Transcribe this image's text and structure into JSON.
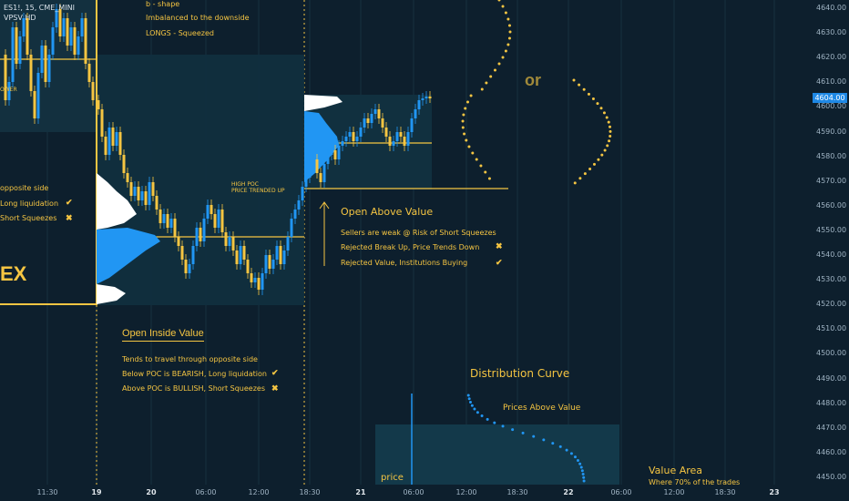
{
  "symbol": "ES1!, 15, CME_MINI",
  "indicator": "VPSV HD",
  "y_axis": {
    "ticks": [
      "4640.00",
      "4630.00",
      "4620.00",
      "4610.00",
      "4600.00",
      "4590.00",
      "4580.00",
      "4570.00",
      "4560.00",
      "4550.00",
      "4540.00",
      "4530.00",
      "4520.00",
      "4510.00",
      "4500.00",
      "4490.00",
      "4480.00",
      "4470.00",
      "4460.00",
      "4450.00"
    ],
    "current_price": "4604.00"
  },
  "x_axis": {
    "ticks": [
      {
        "label": "11:30",
        "bold": false
      },
      {
        "label": "19",
        "bold": true
      },
      {
        "label": "20",
        "bold": true
      },
      {
        "label": "06:00",
        "bold": false
      },
      {
        "label": "12:00",
        "bold": false
      },
      {
        "label": "18:30",
        "bold": false
      },
      {
        "label": "21",
        "bold": true
      },
      {
        "label": "06:00",
        "bold": false
      },
      {
        "label": "12:00",
        "bold": false
      },
      {
        "label": "18:30",
        "bold": false
      },
      {
        "label": "22",
        "bold": true
      },
      {
        "label": "06:00",
        "bold": false
      },
      {
        "label": "12:00",
        "bold": false
      },
      {
        "label": "18:30",
        "bold": false
      },
      {
        "label": "23",
        "bold": true
      }
    ]
  },
  "annotations": {
    "b_shape": "b - shape",
    "imbalanced": "Imbalanced to the downside",
    "longs_squeezed": "LONGS - Squeezed",
    "ower": "OWER",
    "opposite_side": "opposite side",
    "long_liquidation": "Long liquidation",
    "short_squeezes": "Short Squeezes",
    "ex": "EX",
    "check": "✔",
    "cross": "✖",
    "high_poc": "HIGH POC",
    "price_trended_up": "PRICE TRENDED UP",
    "or": "or",
    "open_above_value": {
      "title": "Open Above Value",
      "line1": "Sellers are weak @ Risk of Short Squeezes",
      "line2": "Rejected Break Up, Price Trends Down",
      "line3": "Rejected Value, Institutions Buying"
    },
    "open_inside_value": {
      "title": "Open Inside Value",
      "line1": "Tends to travel through opposite side",
      "line2": "Below POC is BEARISH, Long liquidation",
      "line3": "Above POC is BULLISH, Short Squeezes"
    },
    "distribution_curve": "Distribution Curve",
    "prices_above_value": "Prices Above Value",
    "price": "price",
    "value_area": "Value Area",
    "value_area_sub": "Where 70% of the trades"
  },
  "colors": {
    "background": "#0d1f2d",
    "accent": "#f5c542",
    "profile_blue": "#2196f3",
    "bull_candle": "#2196f3",
    "bear_candle": "#f5c542"
  }
}
